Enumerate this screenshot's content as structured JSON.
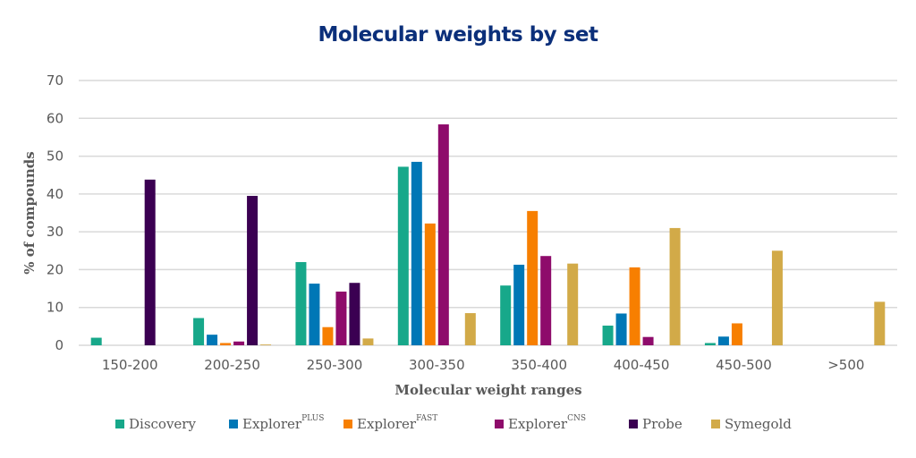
{
  "chart_data": {
    "type": "bar",
    "title": "Molecular weights by set",
    "xlabel": "Molecular weight ranges",
    "ylabel": "% of compounds",
    "ylim": [
      0,
      70
    ],
    "yticks": [
      0,
      10,
      20,
      30,
      40,
      50,
      60,
      70
    ],
    "grid": true,
    "legend_position": "bottom",
    "categories": [
      "150-200",
      "200-250",
      "250-300",
      "300-350",
      "350-400",
      "400-450",
      "450-500",
      ">500"
    ],
    "series": [
      {
        "name": "Discovery",
        "sup": "",
        "color": "#17a88a",
        "values": [
          2,
          7.2,
          22,
          47.2,
          15.8,
          5.2,
          0.6,
          0
        ]
      },
      {
        "name": "Explorer",
        "sup": "PLUS",
        "color": "#0077b6",
        "values": [
          0,
          2.8,
          16.3,
          48.5,
          21.3,
          8.4,
          2.3,
          0
        ]
      },
      {
        "name": "Explorer",
        "sup": "FAST",
        "color": "#f77f00",
        "values": [
          0,
          0.6,
          4.8,
          32.2,
          35.5,
          20.6,
          5.8,
          0
        ]
      },
      {
        "name": "Explorer",
        "sup": "CNS",
        "color": "#8e0b6b",
        "values": [
          0,
          1,
          14.2,
          58.4,
          23.6,
          2.2,
          0,
          0
        ]
      },
      {
        "name": "Probe",
        "sup": "",
        "color": "#3b0052",
        "values": [
          43.8,
          39.5,
          16.5,
          0,
          0,
          0,
          0,
          0
        ]
      },
      {
        "name": "Symegold",
        "sup": "",
        "color": "#d2aa48",
        "values": [
          0,
          0.2,
          1.8,
          8.5,
          21.6,
          31,
          25,
          11.5
        ]
      }
    ]
  }
}
